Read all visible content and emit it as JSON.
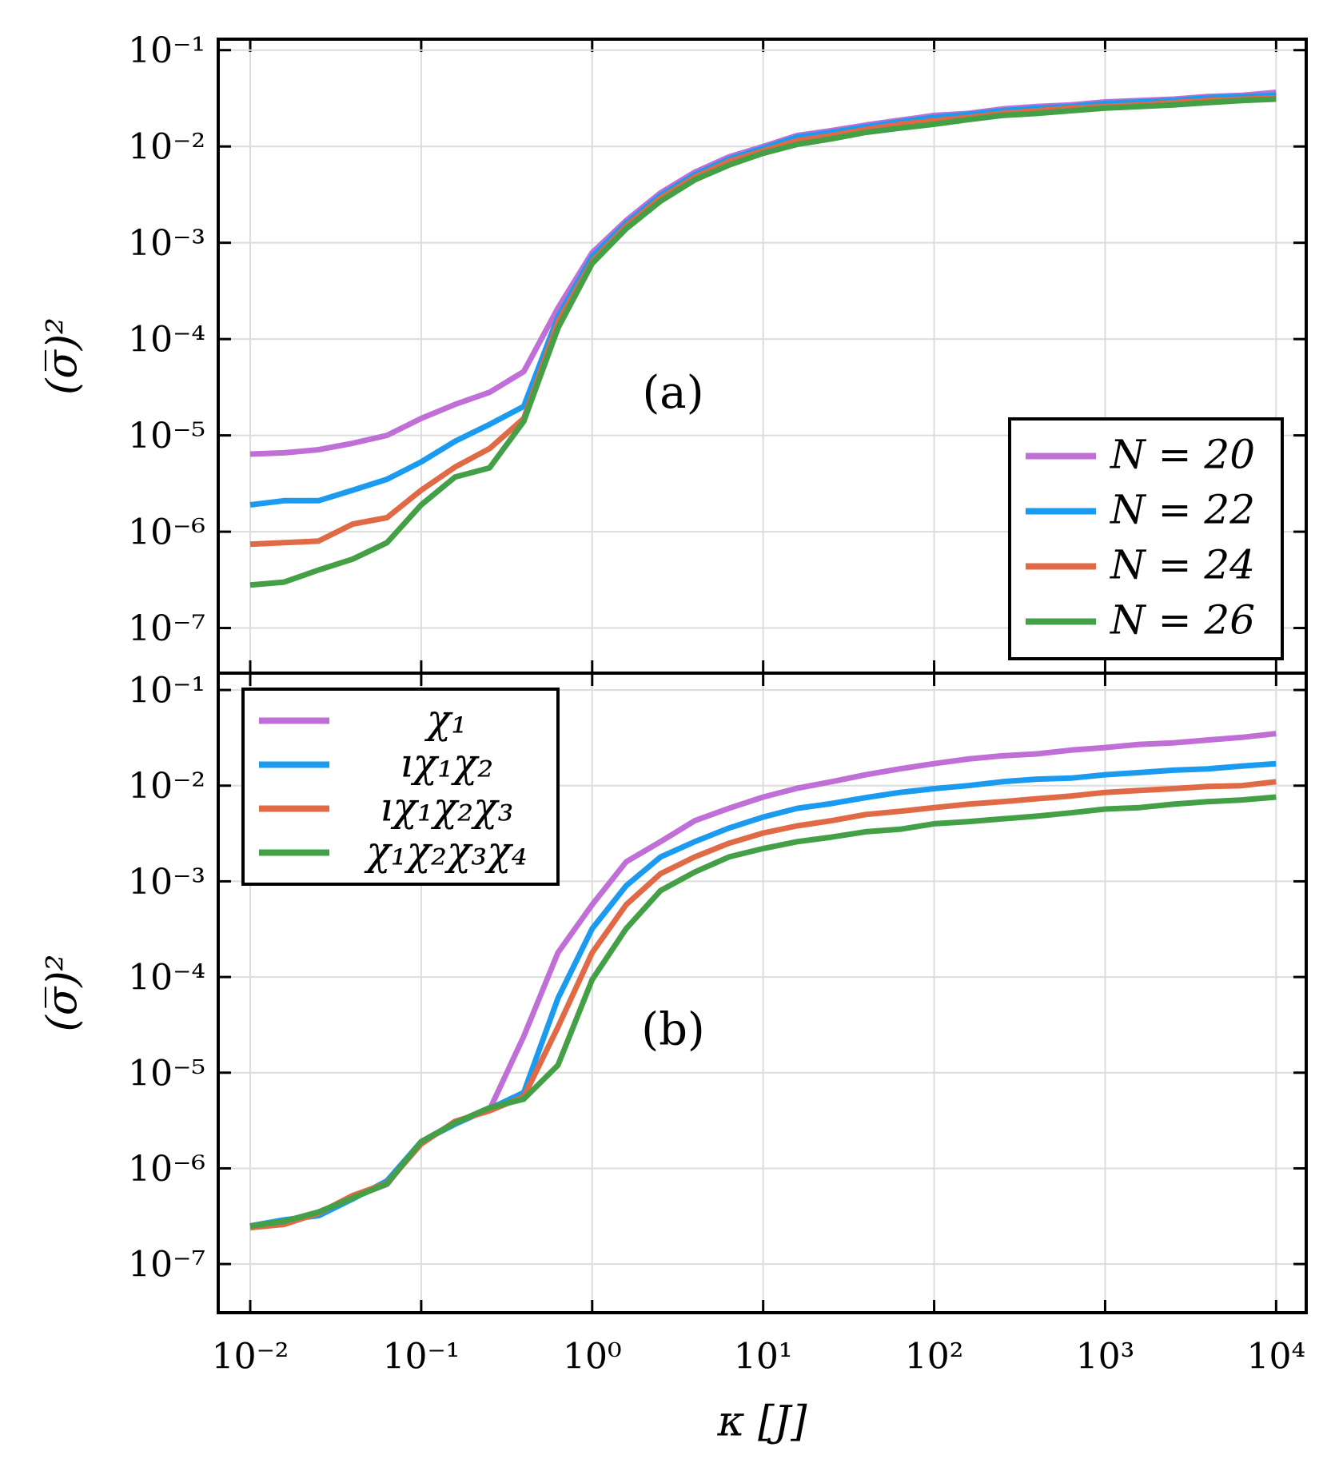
{
  "chart_data": [
    {
      "type": "line",
      "annotation": "(a)",
      "y_label": "(σ̅)²",
      "x_log": true,
      "y_log": true,
      "grid": true,
      "legend": "lower right",
      "xlim": [
        0.0065,
        15000
      ],
      "ylim": [
        3.4e-08,
        0.13
      ],
      "xticks": [
        0.01,
        0.1,
        1,
        10,
        100,
        1000,
        10000
      ],
      "yticks": [
        {
          "value": 1e-07,
          "label": "10⁻⁷"
        },
        {
          "value": 1e-06,
          "label": "10⁻⁶"
        },
        {
          "value": 1e-05,
          "label": "10⁻⁵"
        },
        {
          "value": 0.0001,
          "label": "10⁻⁴"
        },
        {
          "value": 0.001,
          "label": "10⁻³"
        },
        {
          "value": 0.01,
          "label": "10⁻²"
        },
        {
          "value": 0.1,
          "label": "10⁻¹"
        }
      ],
      "x": [
        0.01,
        0.0158,
        0.0251,
        0.0398,
        0.0631,
        0.1,
        0.158,
        0.251,
        0.398,
        0.631,
        1,
        1.58,
        2.51,
        3.98,
        6.31,
        10,
        15.8,
        25.1,
        39.8,
        63.1,
        100,
        158,
        251,
        398,
        631,
        1000,
        1585,
        2512,
        3981,
        6310,
        10000
      ],
      "series": [
        {
          "name": "N = 20",
          "color": "#c06fd6",
          "values": [
            6.4e-06,
            6.6e-06,
            7.1e-06,
            8.3e-06,
            1e-05,
            1.5e-05,
            2.1e-05,
            2.8e-05,
            4.6e-05,
            0.00021,
            0.00079,
            0.0017,
            0.0033,
            0.0054,
            0.0078,
            0.01,
            0.013,
            0.0146,
            0.0167,
            0.0187,
            0.021,
            0.022,
            0.0245,
            0.026,
            0.027,
            0.029,
            0.03,
            0.031,
            0.033,
            0.034,
            0.0365
          ]
        },
        {
          "name": "N = 22",
          "color": "#1a9bf0",
          "values": [
            1.9e-06,
            2.1e-06,
            2.1e-06,
            2.7e-06,
            3.5e-06,
            5.3e-06,
            8.7e-06,
            1.3e-05,
            2e-05,
            0.00017,
            0.00072,
            0.0016,
            0.0031,
            0.0051,
            0.0074,
            0.0096,
            0.0125,
            0.014,
            0.016,
            0.018,
            0.02,
            0.0215,
            0.0235,
            0.025,
            0.026,
            0.028,
            0.029,
            0.03,
            0.032,
            0.033,
            0.034
          ]
        },
        {
          "name": "N = 24",
          "color": "#e06a45",
          "values": [
            7.4e-07,
            7.7e-07,
            8e-07,
            1.2e-06,
            1.4e-06,
            2.7e-06,
            4.7e-06,
            7.3e-06,
            1.5e-05,
            0.00015,
            0.00064,
            0.0015,
            0.0029,
            0.0048,
            0.007,
            0.009,
            0.0115,
            0.013,
            0.015,
            0.017,
            0.0185,
            0.02,
            0.022,
            0.0235,
            0.025,
            0.026,
            0.027,
            0.0285,
            0.03,
            0.031,
            0.032
          ]
        },
        {
          "name": "N = 26",
          "color": "#43a047",
          "values": [
            2.8e-07,
            3e-07,
            4e-07,
            5.2e-07,
            7.7e-07,
            1.9e-06,
            3.7e-06,
            4.6e-06,
            1.4e-05,
            0.00013,
            0.00061,
            0.0014,
            0.0027,
            0.0045,
            0.0064,
            0.0085,
            0.0105,
            0.012,
            0.014,
            0.0155,
            0.017,
            0.019,
            0.021,
            0.022,
            0.0235,
            0.025,
            0.026,
            0.027,
            0.0285,
            0.03,
            0.031
          ]
        }
      ]
    },
    {
      "type": "line",
      "annotation": "(b)",
      "y_label": "(σ̅)²",
      "x_label": "κ [J]",
      "x_log": true,
      "y_log": true,
      "grid": true,
      "legend": "upper left",
      "xlim": [
        0.0065,
        15000
      ],
      "ylim": [
        3.1e-08,
        0.15
      ],
      "xticks": [
        {
          "value": 0.01,
          "label": "10⁻²"
        },
        {
          "value": 0.1,
          "label": "10⁻¹"
        },
        {
          "value": 1,
          "label": "10⁰"
        },
        {
          "value": 10,
          "label": "10¹"
        },
        {
          "value": 100,
          "label": "10²"
        },
        {
          "value": 1000,
          "label": "10³"
        },
        {
          "value": 10000,
          "label": "10⁴"
        }
      ],
      "yticks": [
        {
          "value": 1e-07,
          "label": "10⁻⁷"
        },
        {
          "value": 1e-06,
          "label": "10⁻⁶"
        },
        {
          "value": 1e-05,
          "label": "10⁻⁵"
        },
        {
          "value": 0.0001,
          "label": "10⁻⁴"
        },
        {
          "value": 0.001,
          "label": "10⁻³"
        },
        {
          "value": 0.01,
          "label": "10⁻²"
        },
        {
          "value": 0.1,
          "label": "10⁻¹"
        }
      ],
      "x": [
        0.01,
        0.0158,
        0.0251,
        0.0398,
        0.0631,
        0.1,
        0.158,
        0.251,
        0.398,
        0.631,
        1,
        1.58,
        2.51,
        3.98,
        6.31,
        10,
        15.8,
        25.1,
        39.8,
        63.1,
        100,
        158,
        251,
        398,
        631,
        1000,
        1585,
        2512,
        3981,
        6310,
        10000
      ],
      "series": [
        {
          "name": "χ₁",
          "color": "#c06fd6",
          "values": [
            2.5e-07,
            2.8e-07,
            3.3e-07,
            5e-07,
            6.8e-07,
            1.9e-06,
            3e-06,
            4.1e-06,
            2.4e-05,
            0.00018,
            0.00057,
            0.0016,
            0.0026,
            0.0043,
            0.0058,
            0.0076,
            0.0094,
            0.011,
            0.013,
            0.015,
            0.017,
            0.019,
            0.0205,
            0.0215,
            0.0235,
            0.025,
            0.027,
            0.028,
            0.03,
            0.032,
            0.035
          ]
        },
        {
          "name": "ıχ₁χ₂",
          "color": "#1a9bf0",
          "values": [
            2.5e-07,
            2.9e-07,
            3.2e-07,
            4.8e-07,
            7.4e-07,
            1.9e-06,
            2.9e-06,
            4.2e-06,
            6.2e-06,
            6e-05,
            0.00032,
            0.0009,
            0.0018,
            0.0026,
            0.0036,
            0.0047,
            0.0058,
            0.0065,
            0.0075,
            0.0085,
            0.0093,
            0.01,
            0.011,
            0.0117,
            0.012,
            0.013,
            0.0137,
            0.0145,
            0.015,
            0.016,
            0.017
          ]
        },
        {
          "name": "ıχ₁χ₂χ₃",
          "color": "#e06a45",
          "values": [
            2.4e-07,
            2.6e-07,
            3.4e-07,
            5.2e-07,
            7e-07,
            1.8e-06,
            3.1e-06,
            4e-06,
            5.6e-06,
            3e-05,
            0.00018,
            0.00057,
            0.0012,
            0.0018,
            0.0025,
            0.0032,
            0.0038,
            0.0043,
            0.005,
            0.0054,
            0.0059,
            0.0064,
            0.0068,
            0.0073,
            0.0078,
            0.0085,
            0.0089,
            0.0093,
            0.0098,
            0.01,
            0.011
          ]
        },
        {
          "name": "χ₁χ₂χ₃χ₄",
          "color": "#43a047",
          "values": [
            2.5e-07,
            2.8e-07,
            3.5e-07,
            4.9e-07,
            6.9e-07,
            1.9e-06,
            3e-06,
            4.3e-06,
            5.3e-06,
            1.2e-05,
            9.4e-05,
            0.00032,
            0.0008,
            0.00125,
            0.0018,
            0.0022,
            0.0026,
            0.0029,
            0.0033,
            0.0035,
            0.004,
            0.0042,
            0.0045,
            0.0048,
            0.0052,
            0.0057,
            0.0059,
            0.0064,
            0.0068,
            0.0071,
            0.0076
          ]
        }
      ]
    }
  ]
}
